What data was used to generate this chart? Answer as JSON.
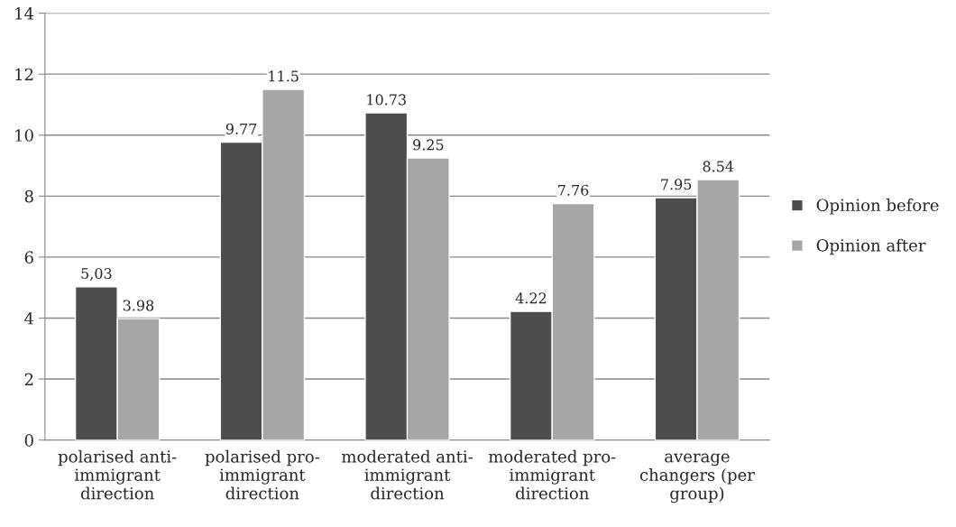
{
  "chart_data": {
    "type": "bar",
    "categories": [
      "polarised anti-\nimmigrant\ndirection",
      "polarised pro-\nimmigrant\ndirection",
      "moderated anti-\nimmigrant\ndirection",
      "moderated pro-\nimmigrant\ndirection",
      "average\nchangers (per\ngroup)"
    ],
    "series": [
      {
        "name": "Opinion before",
        "color": "#4d4d4d",
        "values": [
          5.03,
          9.77,
          10.73,
          4.22,
          7.95
        ],
        "value_labels": [
          "5,03",
          "9.77",
          "10.73",
          "4.22",
          "7.95"
        ]
      },
      {
        "name": "Opinion after",
        "color": "#a6a6a6",
        "values": [
          3.98,
          11.5,
          9.25,
          7.76,
          8.54
        ],
        "value_labels": [
          "3.98",
          "11.5",
          "9.25",
          "7.76",
          "8.54"
        ]
      }
    ],
    "ylim": [
      0,
      14
    ],
    "yticks": [
      0,
      2,
      4,
      6,
      8,
      10,
      12,
      14
    ],
    "grid": "y",
    "legend": "right"
  }
}
